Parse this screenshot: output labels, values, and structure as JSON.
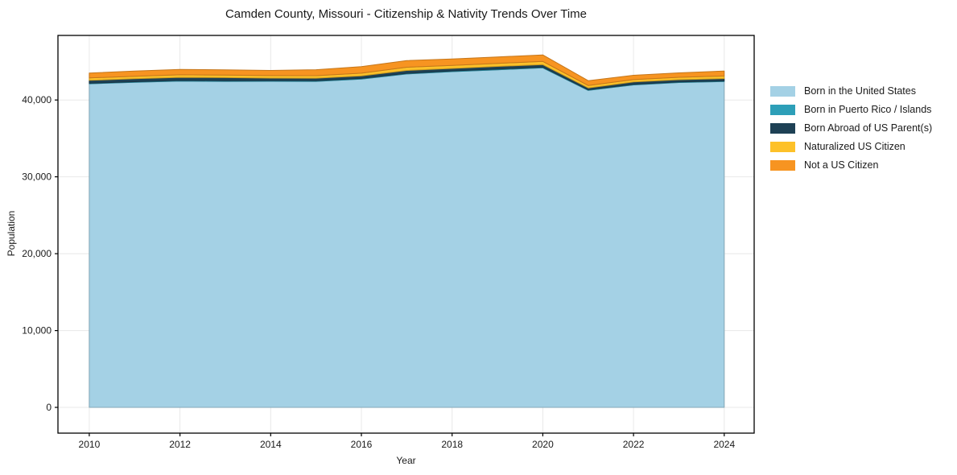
{
  "chart_data": {
    "type": "area",
    "stacked": true,
    "title": "Camden County, Missouri - Citizenship & Nativity Trends Over Time",
    "xlabel": "Year",
    "ylabel": "Population",
    "x": [
      2010,
      2011,
      2012,
      2013,
      2014,
      2015,
      2016,
      2017,
      2018,
      2019,
      2020,
      2021,
      2022,
      2023,
      2024
    ],
    "series": [
      {
        "name": "Born in the United States",
        "color": "#a4d1e5",
        "values": [
          42100,
          42300,
          42450,
          42420,
          42430,
          42420,
          42720,
          43380,
          43690,
          43930,
          44180,
          41250,
          41960,
          42270,
          42400
        ]
      },
      {
        "name": "Born in Puerto Rico / Islands",
        "color": "#2d9fb8",
        "values": [
          80,
          80,
          90,
          90,
          90,
          90,
          90,
          90,
          90,
          90,
          90,
          80,
          80,
          80,
          80
        ]
      },
      {
        "name": "Born Abroad of US Parent(s)",
        "color": "#1e4155",
        "values": [
          370,
          380,
          400,
          400,
          330,
          330,
          330,
          370,
          330,
          350,
          330,
          240,
          300,
          290,
          310
        ]
      },
      {
        "name": "Naturalized US Citizen",
        "color": "#fdc129",
        "values": [
          320,
          330,
          340,
          330,
          320,
          320,
          345,
          420,
          385,
          400,
          420,
          315,
          310,
          310,
          330
        ]
      },
      {
        "name": "Not a US Citizen",
        "color": "#f79421",
        "values": [
          630,
          680,
          700,
          690,
          670,
          780,
          865,
          870,
          845,
          830,
          840,
          630,
          560,
          580,
          650
        ]
      }
    ],
    "xticks": [
      2010,
      2012,
      2014,
      2016,
      2018,
      2020,
      2022,
      2024
    ],
    "yticks": [
      0,
      10000,
      20000,
      30000,
      40000
    ],
    "xlim": [
      2009.31,
      2024.66
    ],
    "ylim": [
      -3350,
      48400
    ],
    "grid": true,
    "legend_position": "right",
    "grid_color": "#e8e8e8",
    "frame_color": "#000000"
  }
}
